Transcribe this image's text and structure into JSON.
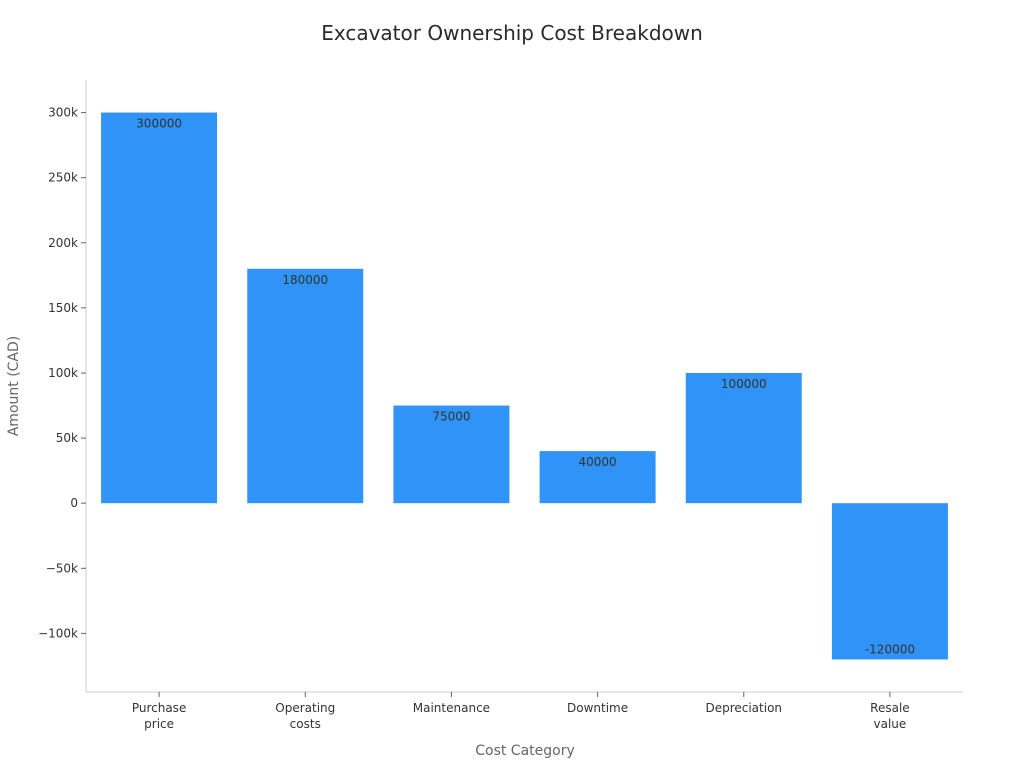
{
  "chart_data": {
    "type": "bar",
    "title": "Excavator Ownership Cost Breakdown",
    "xlabel": "Cost Category",
    "ylabel": "Amount (CAD)",
    "categories": [
      [
        "Purchase",
        "price"
      ],
      [
        "Operating",
        "costs"
      ],
      [
        "Maintenance"
      ],
      [
        "Downtime"
      ],
      [
        "Depreciation"
      ],
      [
        "Resale",
        "value"
      ]
    ],
    "values": [
      300000,
      180000,
      75000,
      40000,
      100000,
      -120000
    ],
    "data_labels": [
      "300000",
      "180000",
      "75000",
      "40000",
      "100000",
      "-120000"
    ],
    "ylim": [
      -145000,
      325000
    ],
    "yticks": [
      300000,
      250000,
      200000,
      150000,
      100000,
      50000,
      0,
      -50000,
      -100000
    ],
    "ytick_labels": [
      "300k",
      "250k",
      "200k",
      "150k",
      "100k",
      "50k",
      "0",
      "−50k",
      "−100k"
    ],
    "bar_color": "#3093f7",
    "grid": false,
    "legend": false
  }
}
